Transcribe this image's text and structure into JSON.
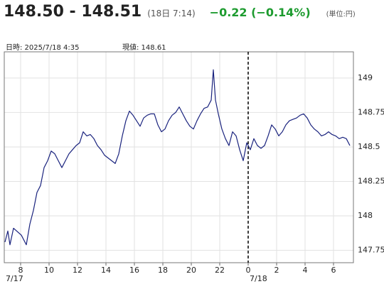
{
  "header": {
    "quote": "148.50 - 148.51",
    "time": "(18日 7:14)",
    "change": "−0.22 (−0.14%)",
    "unit": "(単位:円)"
  },
  "info": {
    "datetime": "日時: 2025/7/18  4:35",
    "current": "現値: 148.61"
  },
  "chart_data": {
    "type": "line",
    "color": "#1a237e",
    "grid": true,
    "x": [
      6.9,
      7.1,
      7.25,
      7.5,
      8.05,
      8.4,
      8.65,
      8.9,
      9.15,
      9.4,
      9.65,
      9.9,
      10.15,
      10.4,
      10.65,
      10.9,
      11.15,
      11.4,
      11.65,
      11.9,
      12.15,
      12.4,
      12.65,
      12.9,
      13.15,
      13.4,
      13.65,
      13.9,
      14.15,
      14.4,
      14.65,
      14.9,
      15.15,
      15.4,
      15.65,
      15.9,
      16.15,
      16.4,
      16.65,
      16.9,
      17.15,
      17.4,
      17.65,
      17.9,
      18.15,
      18.4,
      18.65,
      18.9,
      19.15,
      19.4,
      19.65,
      19.9,
      20.15,
      20.4,
      20.65,
      20.9,
      21.15,
      21.4,
      21.55,
      21.7,
      21.9,
      22.15,
      22.4,
      22.65,
      22.9,
      23.15,
      23.4,
      23.65,
      23.9,
      24.15,
      24.4,
      24.65,
      24.9,
      25.15,
      25.4,
      25.65,
      25.9,
      26.15,
      26.4,
      26.65,
      26.9,
      27.15,
      27.4,
      27.65,
      27.9,
      28.15,
      28.4,
      28.65,
      28.9,
      29.15,
      29.4,
      29.65,
      29.9,
      30.15,
      30.4,
      30.65,
      30.9,
      31.15
    ],
    "values": [
      147.81,
      147.89,
      147.79,
      147.91,
      147.86,
      147.79,
      147.94,
      148.04,
      148.17,
      148.22,
      148.35,
      148.4,
      148.47,
      148.45,
      148.4,
      148.35,
      148.4,
      148.45,
      148.48,
      148.51,
      148.53,
      148.61,
      148.58,
      148.59,
      148.56,
      148.51,
      148.48,
      148.44,
      148.42,
      148.4,
      148.38,
      148.45,
      148.58,
      148.69,
      148.76,
      148.73,
      148.69,
      148.65,
      148.71,
      148.73,
      148.74,
      148.74,
      148.66,
      148.61,
      148.63,
      148.69,
      148.73,
      148.75,
      148.79,
      148.74,
      148.69,
      148.65,
      148.63,
      148.69,
      148.74,
      148.78,
      148.79,
      148.84,
      149.06,
      148.84,
      148.74,
      148.63,
      148.56,
      148.51,
      148.61,
      148.58,
      148.48,
      148.4,
      148.53,
      148.48,
      148.56,
      148.51,
      148.49,
      148.51,
      148.58,
      148.66,
      148.63,
      148.58,
      148.61,
      148.66,
      148.69,
      148.7,
      148.71,
      148.73,
      148.74,
      148.71,
      148.66,
      148.63,
      148.61,
      148.58,
      148.59,
      148.61,
      148.59,
      148.58,
      148.56,
      148.57,
      148.56,
      148.51
    ],
    "xlim": [
      6.85,
      31.4
    ],
    "xticks": [
      8,
      10,
      12,
      14,
      16,
      18,
      20,
      22,
      {
        "value": 24,
        "label": "0"
      },
      {
        "value": 26,
        "label": "2"
      },
      {
        "value": 28,
        "label": "4"
      },
      {
        "value": 30,
        "label": "6"
      }
    ],
    "ylim": [
      147.66,
      149.19
    ],
    "yticks": [
      147.75,
      148,
      148.25,
      148.5,
      148.75,
      149
    ],
    "day_boundary": 24,
    "date_labels": [
      "7/17",
      "7/18"
    ]
  }
}
